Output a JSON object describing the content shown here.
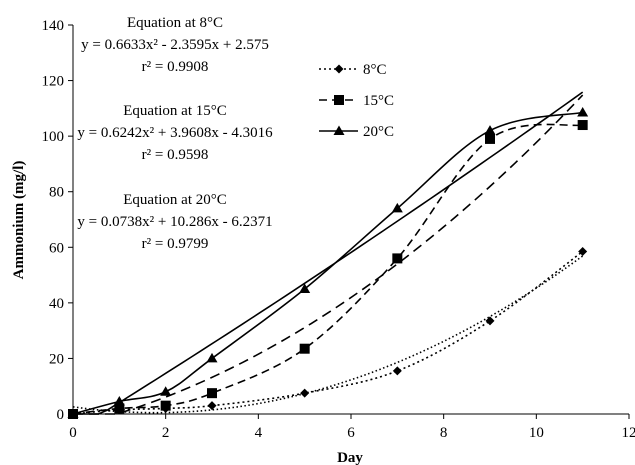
{
  "chart_data": {
    "type": "scatter",
    "xlabel": "Day",
    "ylabel": "Ammonium (mg/l)",
    "xlim": [
      0,
      12
    ],
    "ylim": [
      0,
      140
    ],
    "x_ticks": [
      "0",
      "2",
      "4",
      "6",
      "8",
      "10",
      "12"
    ],
    "y_ticks": [
      "0",
      "20",
      "40",
      "60",
      "80",
      "100",
      "120",
      "140"
    ],
    "grid": false,
    "legend_position": "right",
    "series": [
      {
        "name": "8°C",
        "marker": "diamond",
        "line_style": "dotted",
        "color": "#000000",
        "x": [
          0,
          1,
          2,
          3,
          5,
          7,
          9,
          11
        ],
        "y": [
          0,
          1.5,
          2,
          3,
          7.5,
          15.5,
          33.5,
          58.5
        ],
        "trend": {
          "a": 0.6633,
          "b": -2.3595,
          "c": 2.575
        }
      },
      {
        "name": "15°C",
        "marker": "square",
        "line_style": "dashed",
        "color": "#000000",
        "x": [
          0,
          1,
          2,
          3,
          5,
          7,
          9,
          11
        ],
        "y": [
          0,
          2,
          3,
          7.5,
          23.5,
          56,
          99,
          104
        ],
        "trend": {
          "a": 0.6242,
          "b": 3.9608,
          "c": -4.3016
        }
      },
      {
        "name": "20°C",
        "marker": "triangle",
        "line_style": "solid",
        "color": "#000000",
        "x": [
          0,
          1,
          2,
          3,
          5,
          7,
          9,
          11
        ],
        "y": [
          0,
          4.5,
          8,
          20,
          45,
          74,
          102,
          108.5
        ],
        "trend": {
          "a": 0.0738,
          "b": 10.286,
          "c": -6.2371
        }
      }
    ],
    "annotations": [
      {
        "title": "Equation at 8°C",
        "equation": "y = 0.6633x² - 2.3595x + 2.575",
        "r2": "r² = 0.9908"
      },
      {
        "title": "Equation at 15°C",
        "equation": "y = 0.6242x² + 3.9608x - 4.3016",
        "r2": "r² = 0.9598"
      },
      {
        "title": "Equation at 20°C",
        "equation": "y = 0.0738x² + 10.286x - 6.2371",
        "r2": "r² = 0.9799"
      }
    ]
  }
}
